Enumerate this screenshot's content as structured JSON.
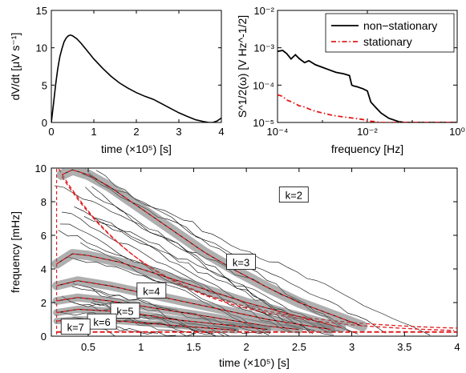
{
  "chart_data": [
    {
      "type": "line",
      "panel": "top-left",
      "xlabel": "time (×10⁵) [s]",
      "ylabel": "dV/dt [μV s⁻¹]",
      "xlim": [
        0,
        4
      ],
      "ylim": [
        0,
        15
      ],
      "xticks": [
        "0",
        "1",
        "2",
        "3",
        "4"
      ],
      "yticks": [
        "0",
        "5",
        "10",
        "15"
      ],
      "x": [
        0.0,
        0.05,
        0.1,
        0.15,
        0.2,
        0.25,
        0.3,
        0.35,
        0.4,
        0.45,
        0.5,
        0.6,
        0.7,
        0.8,
        0.9,
        1.0,
        1.2,
        1.4,
        1.6,
        1.8,
        2.0,
        2.2,
        2.4,
        2.6,
        2.8,
        3.0,
        3.2,
        3.4,
        3.6,
        3.7,
        3.8,
        3.9,
        4.0
      ],
      "y": [
        0.0,
        2.5,
        5.0,
        7.2,
        8.8,
        9.9,
        10.8,
        11.3,
        11.6,
        11.7,
        11.6,
        11.2,
        10.6,
        9.9,
        9.2,
        8.5,
        7.3,
        6.2,
        5.3,
        4.6,
        4.0,
        3.5,
        3.1,
        2.5,
        1.9,
        1.3,
        0.8,
        0.35,
        0.1,
        0.0,
        0.0,
        0.2,
        0.6
      ]
    },
    {
      "type": "line",
      "panel": "top-right",
      "xlabel": "frequency [Hz]",
      "ylabel": "S^1/2(ω) [V Hz^-1/2]",
      "xscale": "log",
      "yscale": "log",
      "xlim": [
        0.0001,
        1
      ],
      "ylim": [
        1e-05,
        0.01
      ],
      "xticks": [
        "10⁻⁴",
        "10⁻²",
        "10⁰"
      ],
      "yticks": [
        "10⁻⁵",
        "10⁻⁴",
        "10⁻³",
        "10⁻²"
      ],
      "legend": "top-right",
      "series": [
        {
          "name": "non−stationary",
          "color": "#000000",
          "style": "solid",
          "x": [
            0.0001,
            0.00013,
            0.00016,
            0.0002,
            0.00025,
            0.0003,
            0.0004,
            0.0005,
            0.0007,
            0.001,
            0.0015,
            0.002,
            0.003,
            0.004,
            0.0045,
            0.005,
            0.006,
            0.008,
            0.01,
            0.012,
            0.015,
            0.02,
            0.03,
            0.05,
            0.07,
            0.1,
            0.2,
            0.5,
            1.0
          ],
          "y": [
            0.0008,
            0.00085,
            0.0007,
            0.0005,
            0.00065,
            0.00052,
            0.0004,
            0.00045,
            0.00035,
            0.0003,
            0.00025,
            0.00022,
            0.0002,
            0.00018,
            0.0001,
            9.5e-05,
            9e-05,
            8e-05,
            7e-05,
            3.5e-05,
            2.6e-05,
            1.8e-05,
            1.3e-05,
            1.05e-05,
            1e-05,
            1e-05,
            1e-05,
            1e-05,
            1e-05
          ]
        },
        {
          "name": "stationary",
          "color": "#e31a1c",
          "style": "dash-dot",
          "x": [
            0.0001,
            0.00013,
            0.00016,
            0.0002,
            0.00025,
            0.0003,
            0.0004,
            0.0005,
            0.0007,
            0.001,
            0.0015,
            0.002,
            0.003,
            0.005,
            0.008,
            0.01,
            0.015,
            0.02,
            0.03,
            0.05,
            0.1,
            0.2,
            0.5,
            1.0
          ],
          "y": [
            5.5e-05,
            5e-05,
            4e-05,
            3.6e-05,
            3.2e-05,
            2.8e-05,
            2.6e-05,
            2.3e-05,
            2e-05,
            1.8e-05,
            1.6e-05,
            1.5e-05,
            1.4e-05,
            1.3e-05,
            1.2e-05,
            1.1e-05,
            1.05e-05,
            1e-05,
            1e-05,
            1e-05,
            1e-05,
            1e-05,
            1e-05,
            1e-05
          ]
        }
      ]
    },
    {
      "type": "heatmap",
      "panel": "bottom",
      "xlabel": "time (×10⁵) [s]",
      "ylabel": "frequency [mHz]",
      "xlim": [
        0.15,
        4
      ],
      "ylim": [
        0,
        10
      ],
      "xticks": [
        "0.5",
        "1",
        "1.5",
        "2",
        "2.5",
        "3",
        "3.5",
        "4"
      ],
      "yticks": [
        "0",
        "2",
        "4",
        "6",
        "8",
        "10"
      ],
      "mode_labels": [
        "k=2",
        "k=3",
        "k=4",
        "k=5",
        "k=6",
        "k=7"
      ],
      "modes": [
        {
          "label": "k=2",
          "label_at": [
            2.45,
            8.4
          ],
          "ridge_x": [
            0.25,
            0.35,
            0.5,
            0.7,
            1.0,
            1.3,
            1.6,
            1.9,
            2.2,
            2.5,
            2.8,
            3.1
          ],
          "ridge_y": [
            9.6,
            9.9,
            9.6,
            8.9,
            7.6,
            6.3,
            5.0,
            3.9,
            2.9,
            2.0,
            1.3,
            0.6
          ]
        },
        {
          "label": "k=3",
          "label_at": [
            1.95,
            4.4
          ],
          "ridge_x": [
            0.2,
            0.35,
            0.5,
            0.8,
            1.1,
            1.4,
            1.7,
            2.0,
            2.3,
            2.6,
            2.9
          ],
          "ridge_y": [
            4.3,
            4.9,
            4.8,
            4.4,
            3.8,
            3.2,
            2.6,
            2.0,
            1.5,
            1.0,
            0.5
          ]
        },
        {
          "label": "k=4",
          "label_at": [
            1.1,
            2.7
          ],
          "ridge_x": [
            0.2,
            0.4,
            0.7,
            1.0,
            1.3,
            1.6,
            1.9,
            2.2,
            2.5,
            2.8
          ],
          "ridge_y": [
            3.0,
            3.3,
            3.0,
            2.6,
            2.2,
            1.8,
            1.4,
            1.0,
            0.7,
            0.4
          ]
        },
        {
          "label": "k=5",
          "label_at": [
            0.85,
            1.5
          ],
          "ridge_x": [
            0.2,
            0.4,
            0.7,
            1.0,
            1.3,
            1.6,
            1.9,
            2.2,
            2.5
          ],
          "ridge_y": [
            2.1,
            2.3,
            2.1,
            1.8,
            1.5,
            1.2,
            0.9,
            0.6,
            0.4
          ]
        },
        {
          "label": "k=6",
          "label_at": [
            0.63,
            0.85
          ],
          "ridge_x": [
            0.2,
            0.4,
            0.7,
            1.0,
            1.3,
            1.6,
            1.9,
            2.2
          ],
          "ridge_y": [
            1.4,
            1.6,
            1.5,
            1.3,
            1.0,
            0.8,
            0.6,
            0.4
          ]
        },
        {
          "label": "k=7",
          "label_at": [
            0.38,
            0.55
          ],
          "ridge_x": [
            0.2,
            0.4,
            0.7,
            1.0,
            1.3,
            1.6,
            1.9
          ],
          "ridge_y": [
            0.9,
            1.0,
            0.95,
            0.8,
            0.65,
            0.5,
            0.35
          ]
        }
      ]
    }
  ]
}
